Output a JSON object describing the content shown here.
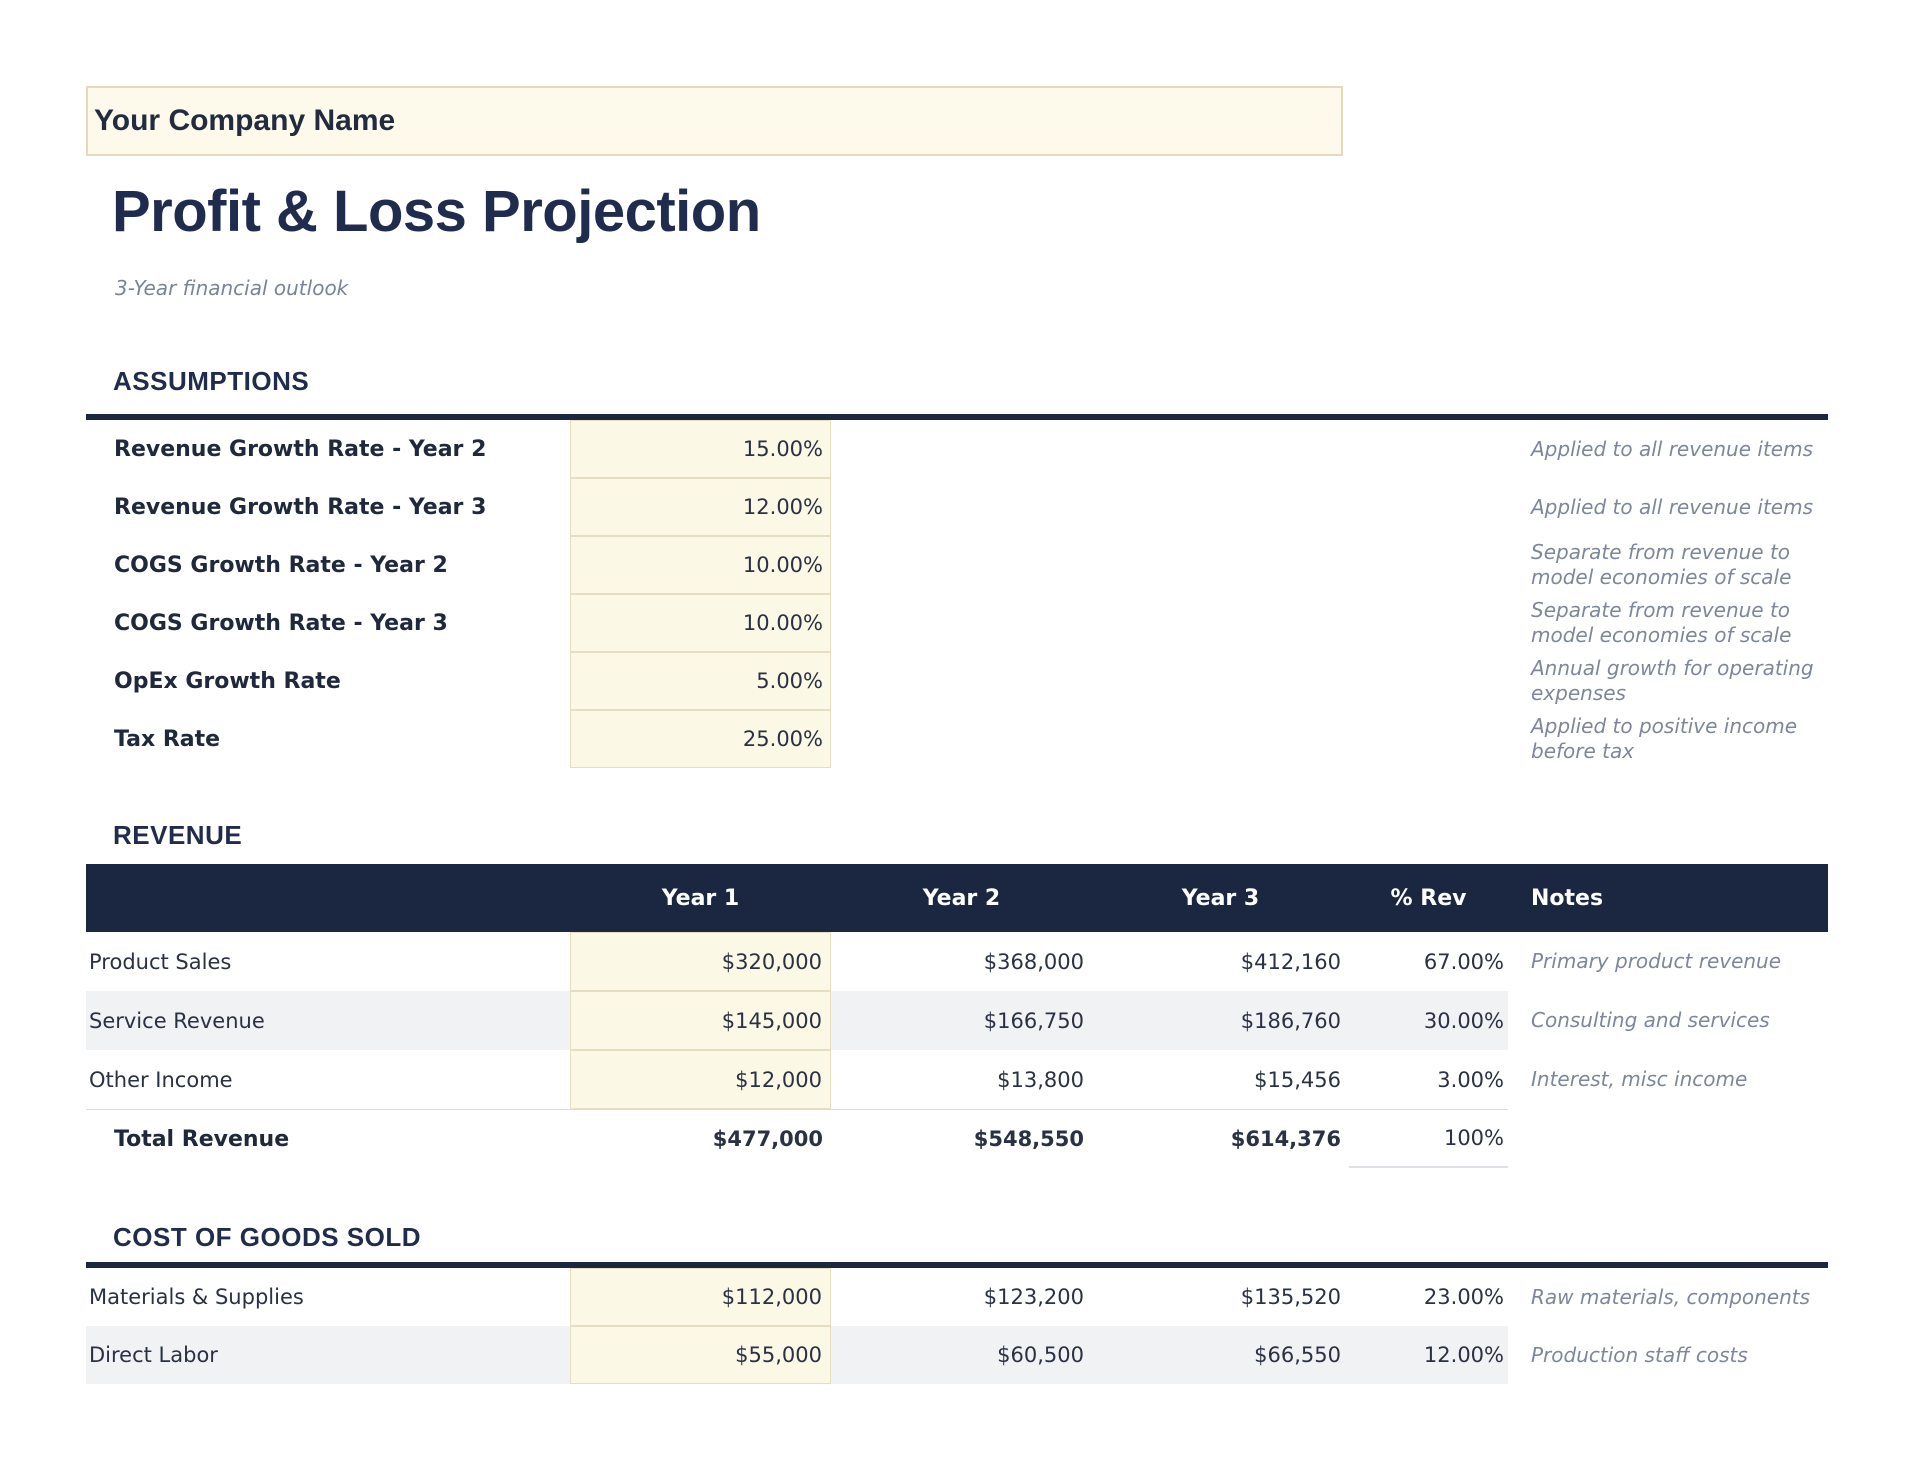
{
  "header": {
    "company_name": "Your Company Name",
    "title": "Profit & Loss Projection",
    "subtitle": "3-Year financial outlook"
  },
  "colors": {
    "navy_bar": "#1B2640",
    "heading_navy": "#1F2C4C",
    "body_text": "#2A3143",
    "note_gray": "#7E8799",
    "input_cell_bg": "#FCF8E6",
    "input_cell_border": "#E6DEC0",
    "company_box_bg": "#FDFAEC",
    "zebra_row": "#F1F2F4"
  },
  "assumptions": {
    "heading": "ASSUMPTIONS",
    "rows": [
      {
        "label": "Revenue Growth Rate - Year 2",
        "value": "15.00%",
        "note": "Applied to all revenue items"
      },
      {
        "label": "Revenue Growth Rate - Year 3",
        "value": "12.00%",
        "note": "Applied to all revenue items"
      },
      {
        "label": "COGS Growth Rate - Year 2",
        "value": "10.00%",
        "note": "Separate from revenue to\nmodel economies of scale"
      },
      {
        "label": "COGS Growth Rate - Year 3",
        "value": "10.00%",
        "note": "Separate from revenue to\nmodel economies of scale"
      },
      {
        "label": "OpEx Growth Rate",
        "value": "5.00%",
        "note": "Annual growth for operating\nexpenses"
      },
      {
        "label": "Tax Rate",
        "value": "25.00%",
        "note": "Applied to positive income\nbefore tax"
      }
    ]
  },
  "revenue": {
    "heading": "REVENUE",
    "columns": {
      "year1": "Year 1",
      "year2": "Year 2",
      "year3": "Year 3",
      "pct_rev": "% Rev",
      "notes": "Notes"
    },
    "rows": [
      {
        "label": "Product Sales",
        "year1": "$320,000",
        "year2": "$368,000",
        "year3": "$412,160",
        "pct_rev": "67.00%",
        "note": "Primary product revenue"
      },
      {
        "label": "Service Revenue",
        "year1": "$145,000",
        "year2": "$166,750",
        "year3": "$186,760",
        "pct_rev": "30.00%",
        "note": "Consulting and services"
      },
      {
        "label": "Other Income",
        "year1": "$12,000",
        "year2": "$13,800",
        "year3": "$15,456",
        "pct_rev": "3.00%",
        "note": "Interest, misc income"
      }
    ],
    "total": {
      "label": "Total Revenue",
      "year1": "$477,000",
      "year2": "$548,550",
      "year3": "$614,376",
      "pct_rev": "100%"
    }
  },
  "cogs": {
    "heading": "COST OF GOODS SOLD",
    "rows": [
      {
        "label": "Materials & Supplies",
        "year1": "$112,000",
        "year2": "$123,200",
        "year3": "$135,520",
        "pct_rev": "23.00%",
        "note": "Raw materials, components"
      },
      {
        "label": "Direct Labor",
        "year1": "$55,000",
        "year2": "$60,500",
        "year3": "$66,550",
        "pct_rev": "12.00%",
        "note": "Production staff costs"
      }
    ]
  }
}
